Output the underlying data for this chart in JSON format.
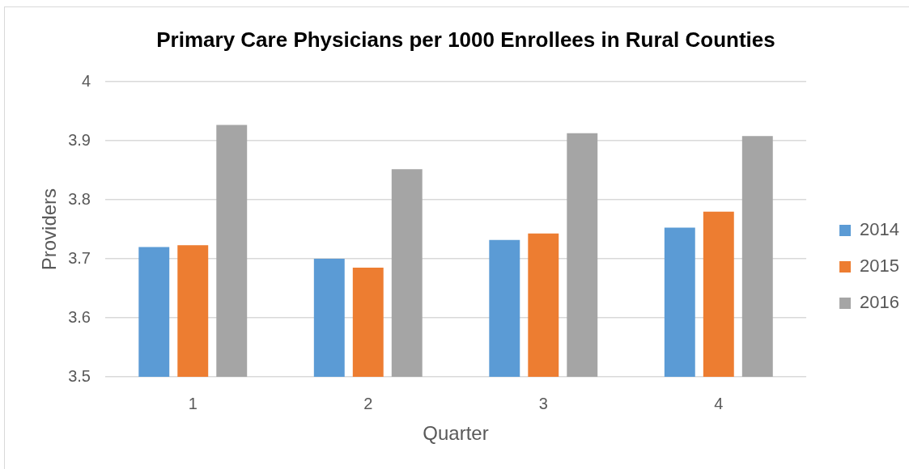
{
  "chart_data": {
    "type": "bar",
    "title": "Primary Care Physicians per 1000 Enrollees in Rural Counties",
    "xlabel": "Quarter",
    "ylabel": "Providers",
    "categories": [
      "1",
      "2",
      "3",
      "4"
    ],
    "series": [
      {
        "name": "2014",
        "color": "#5b9bd5",
        "values": [
          3.72,
          3.7,
          3.732,
          3.753
        ]
      },
      {
        "name": "2015",
        "color": "#ed7d31",
        "values": [
          3.723,
          3.685,
          3.743,
          3.78
        ]
      },
      {
        "name": "2016",
        "color": "#a5a5a5",
        "values": [
          3.927,
          3.852,
          3.913,
          3.908
        ]
      }
    ],
    "ylim": [
      3.5,
      4
    ],
    "yticks": [
      3.5,
      3.6,
      3.7,
      3.8,
      3.9,
      4
    ],
    "grid": "y",
    "legend": "right"
  }
}
